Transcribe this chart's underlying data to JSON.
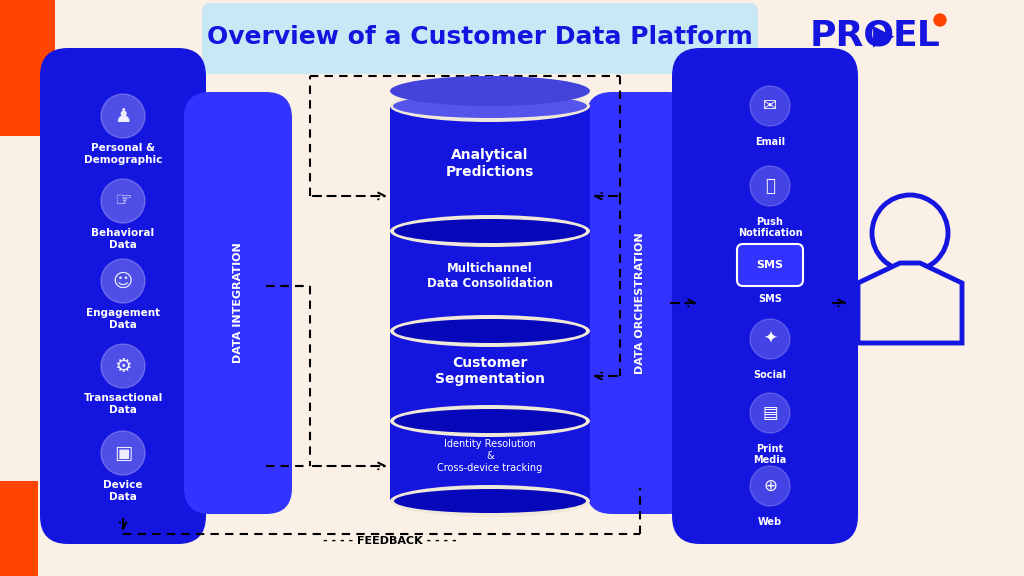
{
  "bg_color": "#FAF0E6",
  "blue": "#1515E0",
  "blue_light": "#3333FF",
  "blue_dark": "#0000AA",
  "white": "#FFFFFF",
  "red": "#FF4500",
  "title": "Overview of a Customer Data Platform",
  "title_bg": "#C8E8F5",
  "left_labels": [
    "Personal &\nDemographic",
    "Behavioral\nData",
    "Engagement\nData",
    "Transactional\nData",
    "Device\nData"
  ],
  "center_sections": [
    {
      "label": "Analytical\nPredictions"
    },
    {
      "label": "Multichannel\nData Consolidation"
    },
    {
      "label": "Customer\nSegmentation"
    },
    {
      "label": "Identity Resolution\n&\nCross-device tracking"
    }
  ],
  "right_labels": [
    "Email",
    "Push\nNotification",
    "SMS",
    "Social",
    "Print\nMedia",
    "Web"
  ],
  "data_integration_label": "DATA INTEGRATION",
  "data_orchestration_label": "DATA ORCHESTRATION",
  "feedback_label": "FEEDBACK"
}
